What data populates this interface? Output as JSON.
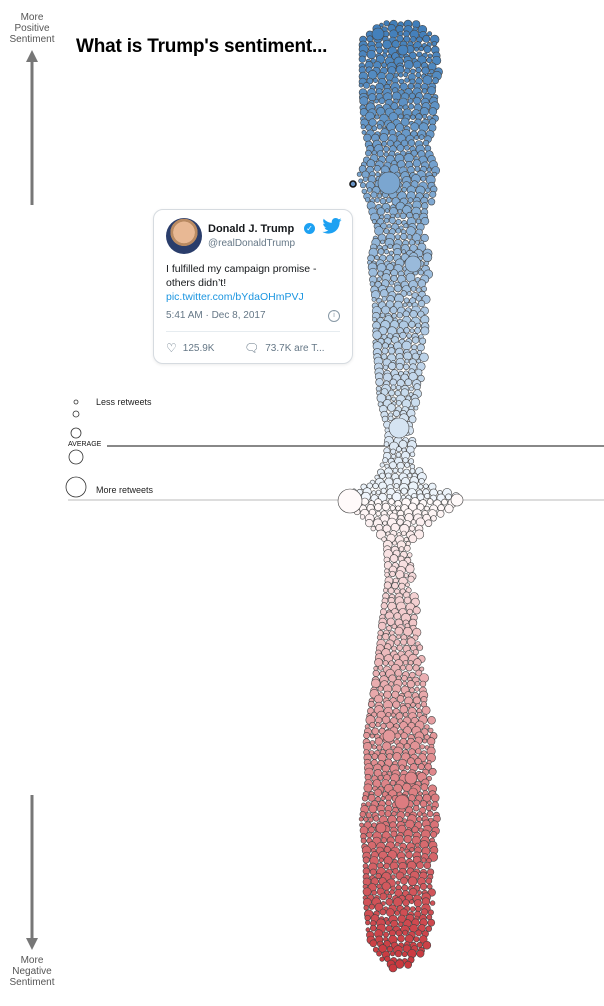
{
  "title": "What is Trump's sentiment...",
  "axis": {
    "top_label": [
      "More",
      "Positive",
      "Sentiment"
    ],
    "bottom_label": [
      "More",
      "Negative",
      "Sentiment"
    ]
  },
  "legend": {
    "less": "Less retweets",
    "more": "More retweets",
    "average": "AVERAGE",
    "sizes": [
      2,
      3,
      5,
      7,
      10
    ]
  },
  "tweet": {
    "name": "Donald J. Trump",
    "handle": "@realDonaldTrump",
    "text": "I fulfilled my campaign promise - others didn’t!",
    "link": "pic.twitter.com/bYdaOHmPVJ",
    "time": "5:41 AM · Dec 8, 2017",
    "likes": "125.9K",
    "retweets": "73.7K are T..."
  },
  "colors": {
    "positive": "#3f7dba",
    "neutral": "#ffffff",
    "negative": "#c9383e",
    "twitter": "#1da1f2"
  },
  "chart_data": {
    "type": "scatter",
    "title": "What is Trump's sentiment...",
    "y_axis": "sentiment (top = more positive, bottom = more negative)",
    "size_encoding": "retweets",
    "highlighted_point": {
      "sentiment_rank": "high positive",
      "tweet_date": "Dec 8, 2017"
    }
  }
}
